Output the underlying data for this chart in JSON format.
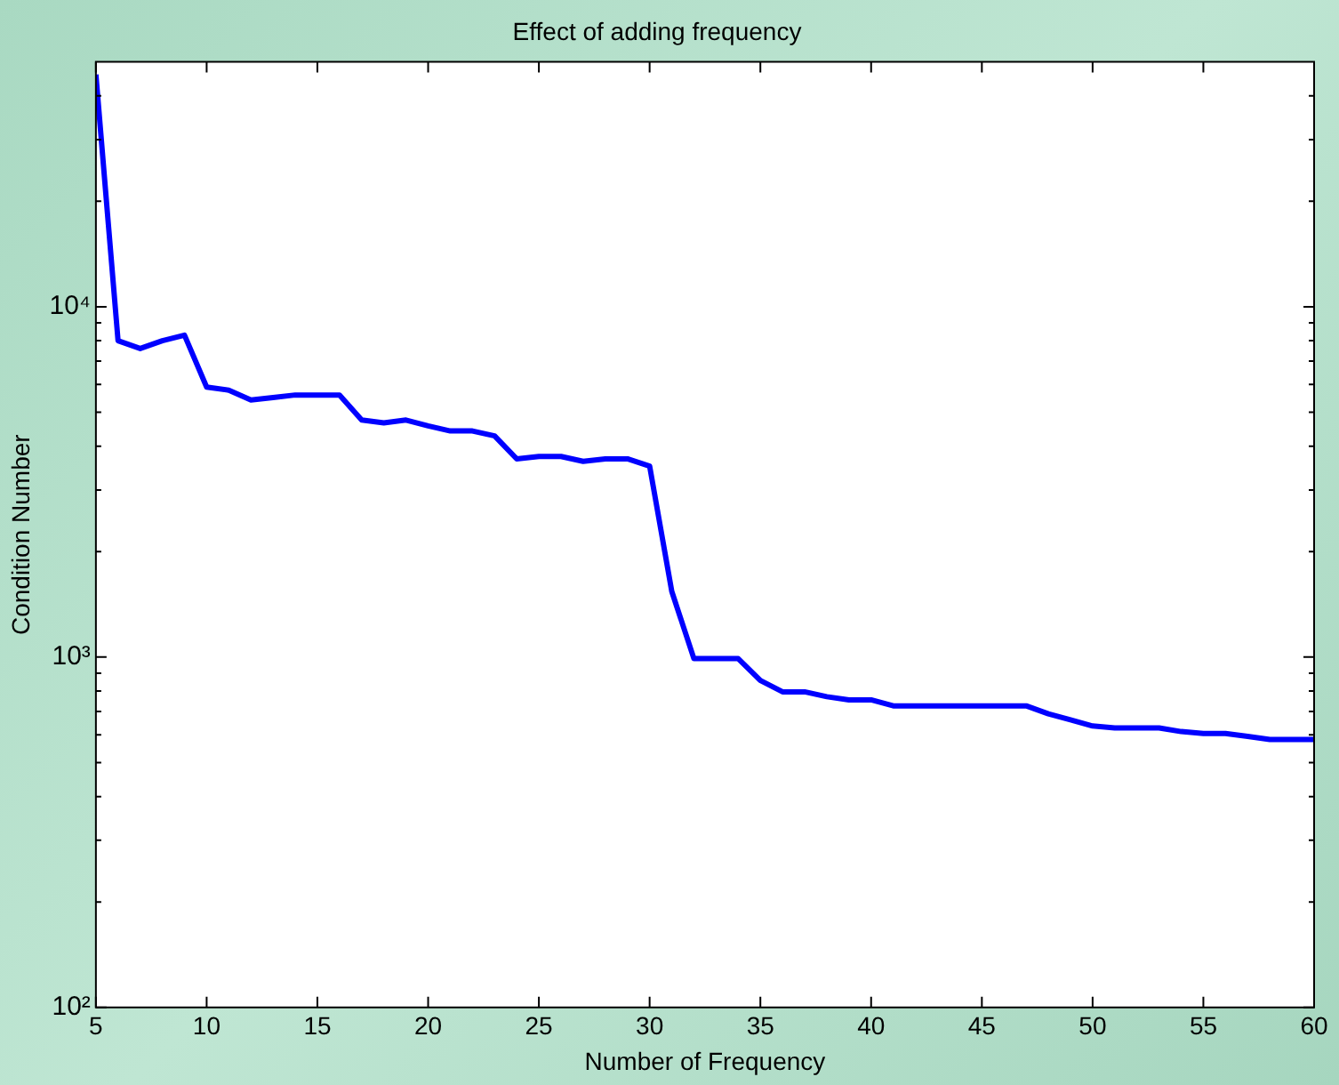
{
  "chart_data": {
    "type": "line",
    "title": "Effect of adding frequency",
    "xlabel": "Number of Frequency",
    "ylabel": "Condition Number",
    "x": [
      5,
      6,
      7,
      8,
      9,
      10,
      11,
      12,
      13,
      14,
      15,
      16,
      17,
      18,
      19,
      20,
      21,
      22,
      23,
      24,
      25,
      26,
      27,
      28,
      29,
      30,
      31,
      32,
      33,
      34,
      35,
      36,
      37,
      38,
      39,
      40,
      41,
      42,
      43,
      44,
      45,
      46,
      47,
      48,
      49,
      50,
      51,
      52,
      53,
      54,
      55,
      56,
      57,
      58,
      59,
      60
    ],
    "series": [
      {
        "color": "#0000ff",
        "values": [
          46000,
          8000,
          7600,
          8000,
          8300,
          5900,
          5780,
          5420,
          5510,
          5600,
          5600,
          5600,
          4750,
          4660,
          4750,
          4570,
          4420,
          4420,
          4280,
          3680,
          3740,
          3740,
          3620,
          3680,
          3680,
          3510,
          1540,
          990,
          990,
          990,
          858,
          796,
          796,
          771,
          755,
          755,
          726,
          726,
          726,
          726,
          726,
          726,
          726,
          689,
          662,
          636,
          628,
          628,
          628,
          613,
          605,
          605,
          594,
          582,
          582,
          582
        ]
      }
    ],
    "log": "y",
    "xlim": [
      5,
      60
    ],
    "xticks": [
      5,
      10,
      15,
      20,
      25,
      30,
      35,
      40,
      45,
      50,
      55,
      60
    ],
    "ylim": [
      100,
      50000
    ],
    "yticks": [
      {
        "value": 100,
        "label": "10²"
      },
      {
        "value": 200,
        "label": null
      },
      {
        "value": 300,
        "label": null
      },
      {
        "value": 400,
        "label": null
      },
      {
        "value": 500,
        "label": null
      },
      {
        "value": 600,
        "label": null
      },
      {
        "value": 700,
        "label": null
      },
      {
        "value": 800,
        "label": null
      },
      {
        "value": 900,
        "label": null
      },
      {
        "value": 1000,
        "label": "10³"
      },
      {
        "value": 2000,
        "label": null
      },
      {
        "value": 3000,
        "label": null
      },
      {
        "value": 4000,
        "label": null
      },
      {
        "value": 5000,
        "label": null
      },
      {
        "value": 6000,
        "label": null
      },
      {
        "value": 7000,
        "label": null
      },
      {
        "value": 8000,
        "label": null
      },
      {
        "value": 9000,
        "label": null
      },
      {
        "value": 10000,
        "label": "10⁴"
      },
      {
        "value": 20000,
        "label": null
      },
      {
        "value": 30000,
        "label": null
      },
      {
        "value": 40000,
        "label": null
      }
    ],
    "grid": false,
    "legend": false,
    "marker": "none",
    "line_style": "solid"
  }
}
